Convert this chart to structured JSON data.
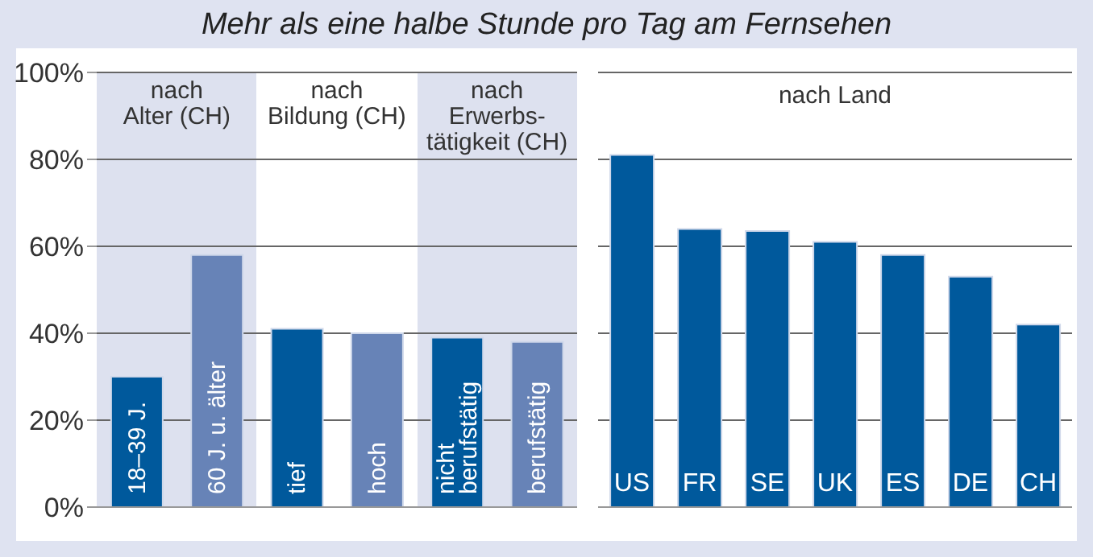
{
  "chart_data": [
    {
      "type": "bar",
      "title": "Mehr als eine halbe Stunde pro Tag am Fernsehen",
      "categories": [
        "18–39 J.",
        "60 J. u. älter",
        "tief",
        "hoch",
        "nicht\nberufstätig",
        "berufstätig"
      ],
      "values": [
        30,
        58,
        41,
        40,
        39,
        38
      ],
      "colors": [
        "#00599c",
        "#6783b7",
        "#00599c",
        "#6783b7",
        "#00599c",
        "#6783b7"
      ],
      "bands": [
        {
          "axis": "x",
          "from": "18–39 J.",
          "to": "60 J. u. älter",
          "label": "nach\nAlter (CH)",
          "color": "#dde1ef"
        },
        {
          "axis": "x",
          "from": "tief",
          "to": "hoch",
          "label": "nach\nBildung (CH)",
          "color": "#ffffff"
        },
        {
          "axis": "x",
          "from": "nicht\nberufstätig",
          "to": "berufstätig",
          "label": "nach\nErwerbs-\ntätigkeit (CH)",
          "color": "#dde1ef"
        }
      ],
      "ylim": [
        0,
        100
      ],
      "yticks": [
        {
          "value": 0,
          "label": "0%"
        },
        {
          "value": 20,
          "label": "20%"
        },
        {
          "value": 40,
          "label": "40%"
        },
        {
          "value": 60,
          "label": "60%"
        },
        {
          "value": 80,
          "label": "80%"
        },
        {
          "value": 100,
          "label": "100%"
        }
      ],
      "grid": "y"
    },
    {
      "type": "bar",
      "title": "nach Land",
      "categories": [
        "US",
        "FR",
        "SE",
        "UK",
        "ES",
        "DE",
        "CH"
      ],
      "values": [
        81,
        64,
        63.5,
        61,
        58,
        53,
        42
      ],
      "color": "#00599c",
      "ylim": [
        0,
        100
      ],
      "yticks": [
        0,
        20,
        40,
        60,
        80,
        100
      ],
      "grid": "y",
      "tick_labels": "x"
    }
  ]
}
